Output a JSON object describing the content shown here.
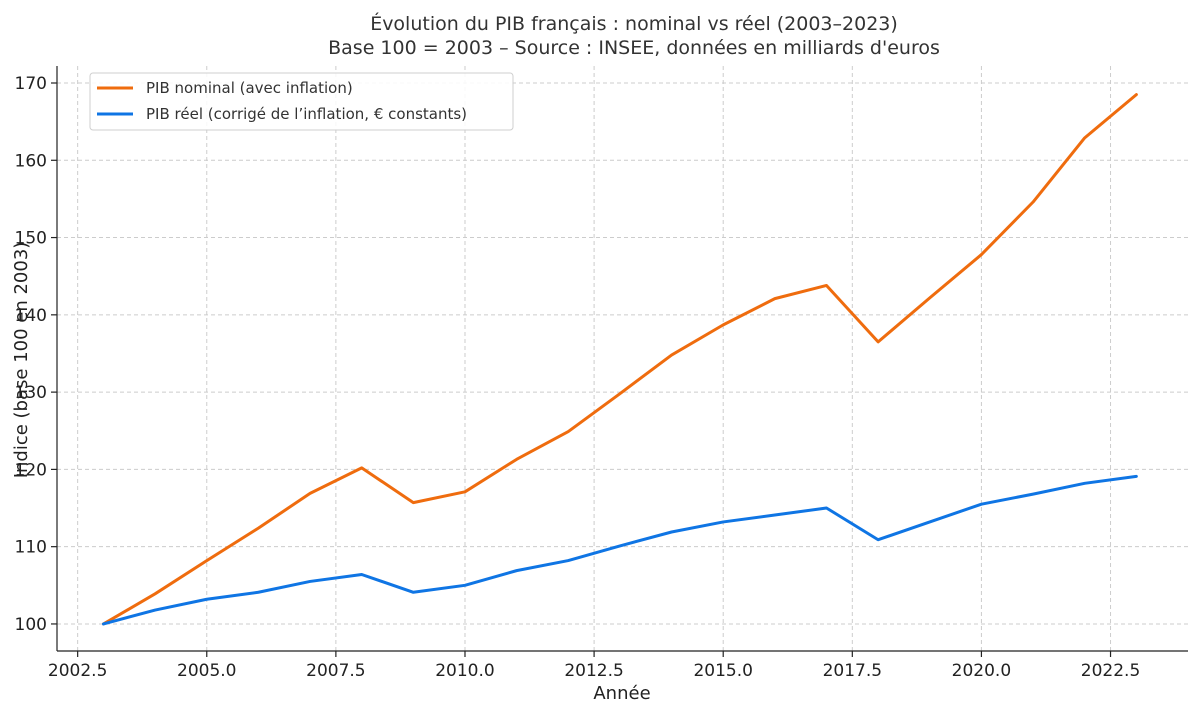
{
  "chart_data": {
    "type": "line",
    "title": "Évolution du PIB français : nominal vs réel (2003–2023)",
    "subtitle": "Base 100 = 2003 – Source : INSEE, données en milliards d'euros",
    "xlabel": "Année",
    "ylabel": "Indice (base 100 en 2003)",
    "xlim": [
      2002.1,
      2024.0
    ],
    "ylim": [
      96.5,
      172.2
    ],
    "xticks": [
      2002.5,
      2005.0,
      2007.5,
      2010.0,
      2012.5,
      2015.0,
      2017.5,
      2020.0,
      2022.5
    ],
    "xtick_labels": [
      "2002.5",
      "2005.0",
      "2007.5",
      "2010.0",
      "2012.5",
      "2015.0",
      "2017.5",
      "2020.0",
      "2022.5"
    ],
    "yticks": [
      100,
      110,
      120,
      130,
      140,
      150,
      160,
      170
    ],
    "ytick_labels": [
      "100",
      "110",
      "120",
      "130",
      "140",
      "150",
      "160",
      "170"
    ],
    "grid": true,
    "legend_position": "top-left",
    "x": [
      2003,
      2004,
      2005,
      2006,
      2007,
      2008,
      2009,
      2010,
      2011,
      2012,
      2013,
      2014,
      2015,
      2016,
      2017,
      2018,
      2019,
      2020,
      2021,
      2022,
      2023
    ],
    "series": [
      {
        "name": "PIB nominal (avec inflation)",
        "color": "#ef6c0e",
        "values": [
          100.0,
          103.9,
          108.2,
          112.4,
          116.9,
          120.2,
          115.7,
          117.1,
          121.3,
          124.9,
          129.8,
          134.8,
          138.7,
          142.1,
          143.8,
          136.5,
          142.2,
          147.8,
          154.6,
          162.9,
          168.5
        ]
      },
      {
        "name": "PIB réel (corrigé de l’inflation, € constants)",
        "color": "#0f75e4",
        "values": [
          100.0,
          101.8,
          103.2,
          104.1,
          105.5,
          106.4,
          104.1,
          105.0,
          106.9,
          108.2,
          110.1,
          111.9,
          113.2,
          114.1,
          115.0,
          110.9,
          113.2,
          115.5,
          116.8,
          118.2,
          119.1
        ]
      }
    ]
  }
}
